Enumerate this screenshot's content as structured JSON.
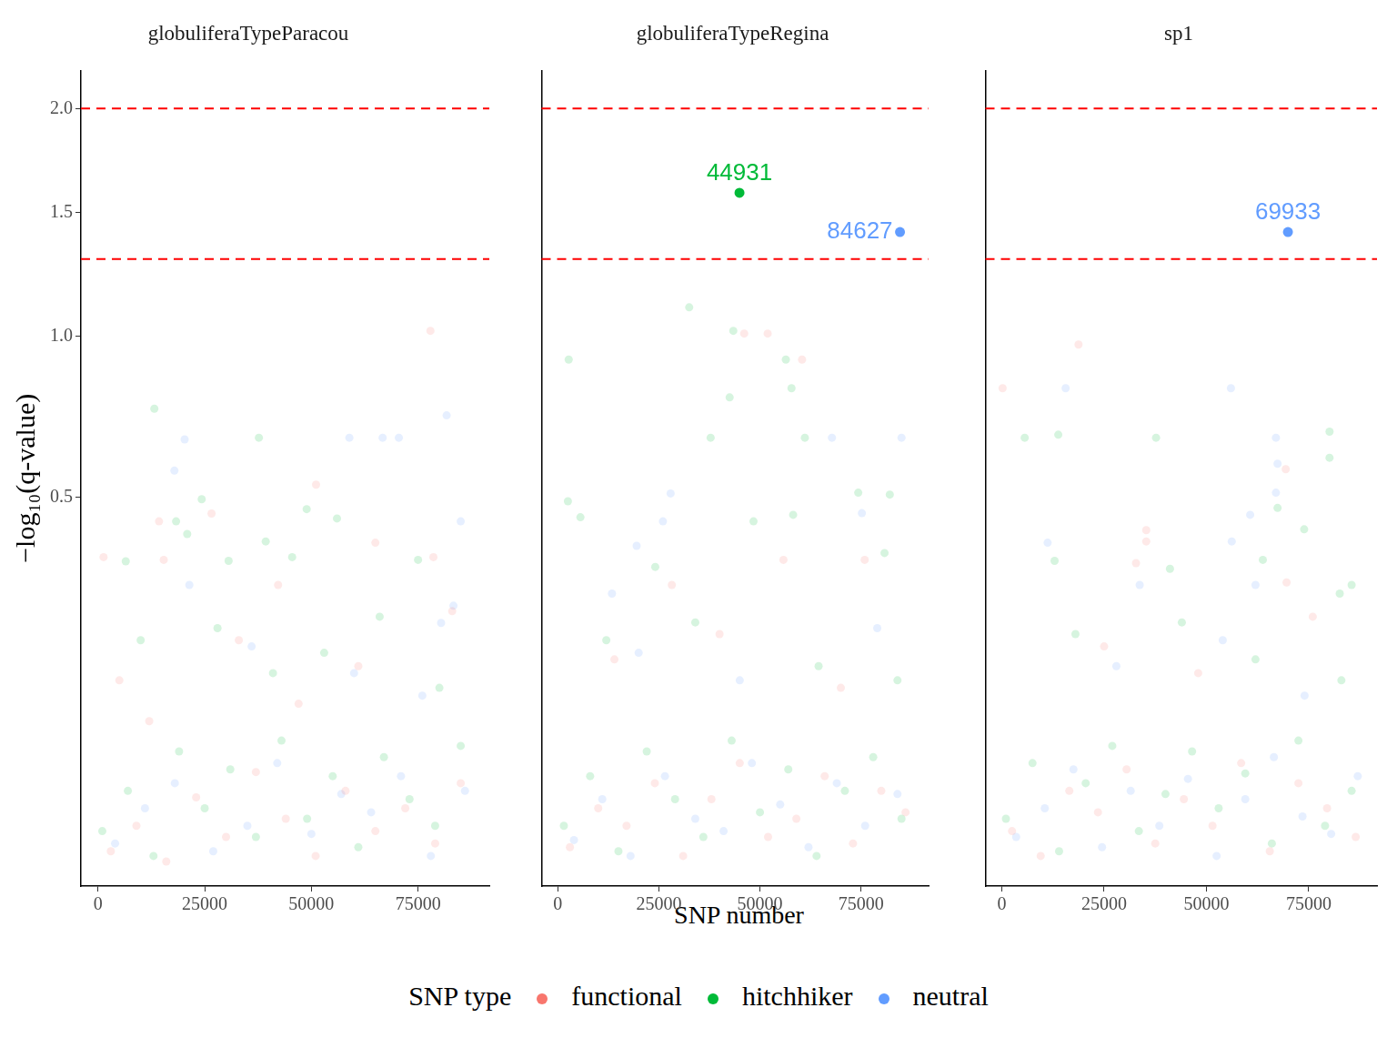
{
  "chart_data": {
    "type": "scatter",
    "x_label": "SNP number",
    "y_label": "−log₁₀(q-value)",
    "legend_title": "SNP type",
    "legend": "bottom",
    "xlim": [
      -4000,
      91700
    ],
    "xticks": [
      0,
      25000,
      50000,
      75000
    ],
    "ylim": [
      0,
      2.2
    ],
    "yticks": [
      {
        "value": 0.5,
        "label": "0.5"
      },
      {
        "value": 1,
        "label": "1.0"
      },
      {
        "value": 1.5,
        "label": "1.5"
      },
      {
        "value": 2,
        "label": "2.0"
      }
    ],
    "hlines": {
      "values": [
        1.301,
        2
      ],
      "color": "#FF0000"
    },
    "panels": [
      {
        "title": "globuliferaTypeParacou",
        "series": [
          {
            "name": "functional",
            "color": "#F8766D",
            "x": [
              77900,
              26600,
              14300,
              51100,
              65000,
              1300,
              15400,
              78600,
              42200,
              3000,
              9000,
              16000,
              23000,
              30000,
              37000,
              44000,
              51000,
              58000,
              65000,
              72000,
              79000,
              85000,
              5000,
              12000,
              33000,
              47000,
              61000,
              83000
            ],
            "values": [
              1.02,
              0.459,
              0.44,
              0.533,
              0.39,
              0.358,
              0.352,
              0.358,
              0.3,
              0.004,
              0.012,
              0.002,
              0.026,
              0.008,
              0.043,
              0.015,
              0.003,
              0.03,
              0.01,
              0.02,
              0.006,
              0.035,
              0.14,
              0.09,
              0.2,
              0.11,
              0.16,
              0.25
            ]
          },
          {
            "name": "hitchhiker",
            "color": "#00BA38",
            "x": [
              13200,
              24300,
              18300,
              20900,
              37700,
              48900,
              56000,
              6500,
              39300,
              45500,
              30600,
              75000,
              1000,
              7000,
              13000,
              19000,
              25000,
              31000,
              37000,
              43000,
              49000,
              55000,
              61000,
              67000,
              73000,
              79000,
              85000,
              10000,
              28000,
              41000,
              53000,
              66000,
              80000
            ],
            "values": [
              0.754,
              0.495,
              0.44,
              0.41,
              0.665,
              0.47,
              0.447,
              0.349,
              0.393,
              0.358,
              0.35,
              0.352,
              0.01,
              0.03,
              0.003,
              0.06,
              0.02,
              0.045,
              0.008,
              0.07,
              0.015,
              0.04,
              0.005,
              0.055,
              0.025,
              0.012,
              0.065,
              0.2,
              0.22,
              0.15,
              0.18,
              0.24,
              0.13
            ]
          },
          {
            "name": "neutral",
            "color": "#619CFF",
            "x": [
              20300,
              17900,
              58900,
              66700,
              70500,
              81700,
              85000,
              21400,
              80400,
              83300,
              4000,
              11000,
              18000,
              27000,
              35000,
              42000,
              50000,
              57000,
              64000,
              71000,
              78000,
              86000,
              36000,
              60000,
              76000
            ],
            "values": [
              0.66,
              0.571,
              0.665,
              0.665,
              0.665,
              0.733,
              0.44,
              0.3,
              0.229,
              0.26,
              0.006,
              0.02,
              0.035,
              0.004,
              0.012,
              0.05,
              0.009,
              0.028,
              0.018,
              0.04,
              0.003,
              0.03,
              0.19,
              0.15,
              0.12
            ]
          }
        ],
        "highlights": []
      },
      {
        "title": "globuliferaTypeRegina",
        "series": [
          {
            "name": "functional",
            "color": "#F8766D",
            "x": [
              46100,
              51900,
              60400,
              55800,
              75900,
              28200,
              3000,
              10000,
              17000,
              24000,
              31000,
              38000,
              45000,
              52000,
              59000,
              66000,
              73000,
              80000,
              86000,
              14000,
              40000,
              70000
            ],
            "values": [
              1.01,
              1.01,
              0.917,
              0.352,
              0.352,
              0.3,
              0.005,
              0.02,
              0.012,
              0.035,
              0.003,
              0.025,
              0.05,
              0.008,
              0.015,
              0.04,
              0.006,
              0.03,
              0.018,
              0.17,
              0.21,
              0.13
            ]
          },
          {
            "name": "hitchhiker",
            "color": "#00BA38",
            "x": [
              32500,
              43400,
              2700,
              56400,
              57800,
              42500,
              37800,
              61100,
              2500,
              5600,
              58200,
              74300,
              82100,
              48400,
              24100,
              80800,
              1500,
              8000,
              15000,
              22000,
              29000,
              36000,
              43000,
              50000,
              57000,
              64000,
              71000,
              78000,
              85000,
              12000,
              34000,
              64500,
              84000
            ],
            "values": [
              1.108,
              1.02,
              0.917,
              0.917,
              0.82,
              0.79,
              0.665,
              0.665,
              0.49,
              0.45,
              0.456,
              0.512,
              0.507,
              0.44,
              0.337,
              0.367,
              0.012,
              0.04,
              0.004,
              0.06,
              0.025,
              0.008,
              0.07,
              0.018,
              0.045,
              0.003,
              0.03,
              0.055,
              0.015,
              0.2,
              0.23,
              0.16,
              0.14
            ]
          },
          {
            "name": "neutral",
            "color": "#619CFF",
            "x": [
              67800,
              85000,
              27900,
              75200,
              26000,
              19500,
              13400,
              4000,
              11000,
              18000,
              26500,
              34000,
              41000,
              48000,
              55000,
              62000,
              69000,
              76000,
              84000,
              20000,
              45000,
              79000
            ],
            "values": [
              0.665,
              0.665,
              0.51,
              0.46,
              0.44,
              0.383,
              0.283,
              0.007,
              0.025,
              0.003,
              0.04,
              0.015,
              0.01,
              0.05,
              0.022,
              0.005,
              0.035,
              0.012,
              0.028,
              0.18,
              0.14,
              0.22
            ]
          }
        ],
        "highlights": [
          {
            "label": "44931",
            "x": 44931,
            "value": 1.59,
            "series": "hitchhiker"
          },
          {
            "label": "84627",
            "x": 84627,
            "value": 1.415,
            "series": "neutral"
          }
        ]
      },
      {
        "title": "sp1",
        "series": [
          {
            "name": "functional",
            "color": "#F8766D",
            "x": [
              18750,
              200,
              35300,
              35300,
              32800,
              69600,
              69400,
              2500,
              9500,
              16500,
              23500,
              30500,
              37500,
              44500,
              51500,
              58500,
              65500,
              72500,
              79500,
              86500,
              25000,
              48000,
              76000
            ],
            "values": [
              0.97,
              0.82,
              0.419,
              0.393,
              0.345,
              0.305,
              0.575,
              0.01,
              0.003,
              0.03,
              0.018,
              0.045,
              0.006,
              0.025,
              0.012,
              0.05,
              0.004,
              0.035,
              0.02,
              0.008,
              0.19,
              0.15,
              0.24
            ]
          },
          {
            "name": "hitchhiker",
            "color": "#00BA38",
            "x": [
              13800,
              5600,
              37700,
              80100,
              80100,
              67400,
              73900,
              63800,
              41100,
              12900,
              82600,
              85500,
              1000,
              7500,
              14000,
              20500,
              27000,
              33500,
              40000,
              46500,
              53000,
              59500,
              66000,
              72500,
              79000,
              85500,
              18000,
              44000,
              62000,
              83000
            ],
            "values": [
              0.674,
              0.665,
              0.665,
              0.683,
              0.607,
              0.473,
              0.421,
              0.352,
              0.333,
              0.35,
              0.283,
              0.3,
              0.015,
              0.05,
              0.004,
              0.035,
              0.065,
              0.01,
              0.028,
              0.06,
              0.02,
              0.042,
              0.006,
              0.07,
              0.012,
              0.03,
              0.21,
              0.23,
              0.17,
              0.14
            ]
          },
          {
            "name": "neutral",
            "color": "#619CFF",
            "x": [
              15600,
              56000,
              67000,
              67400,
              67000,
              60700,
              56200,
              11200,
              33700,
              62000,
              3500,
              10500,
              17500,
              24500,
              31500,
              38500,
              45500,
              52500,
              59500,
              66500,
              73500,
              80500,
              87000,
              28000,
              54000,
              74000
            ],
            "values": [
              0.82,
              0.82,
              0.665,
              0.59,
              0.512,
              0.456,
              0.393,
              0.39,
              0.3,
              0.3,
              0.008,
              0.02,
              0.045,
              0.005,
              0.03,
              0.012,
              0.038,
              0.003,
              0.025,
              0.055,
              0.016,
              0.009,
              0.04,
              0.16,
              0.2,
              0.12
            ]
          }
        ],
        "highlights": [
          {
            "label": "69933",
            "x": 69933,
            "value": 1.415,
            "series": "neutral"
          }
        ]
      }
    ]
  }
}
